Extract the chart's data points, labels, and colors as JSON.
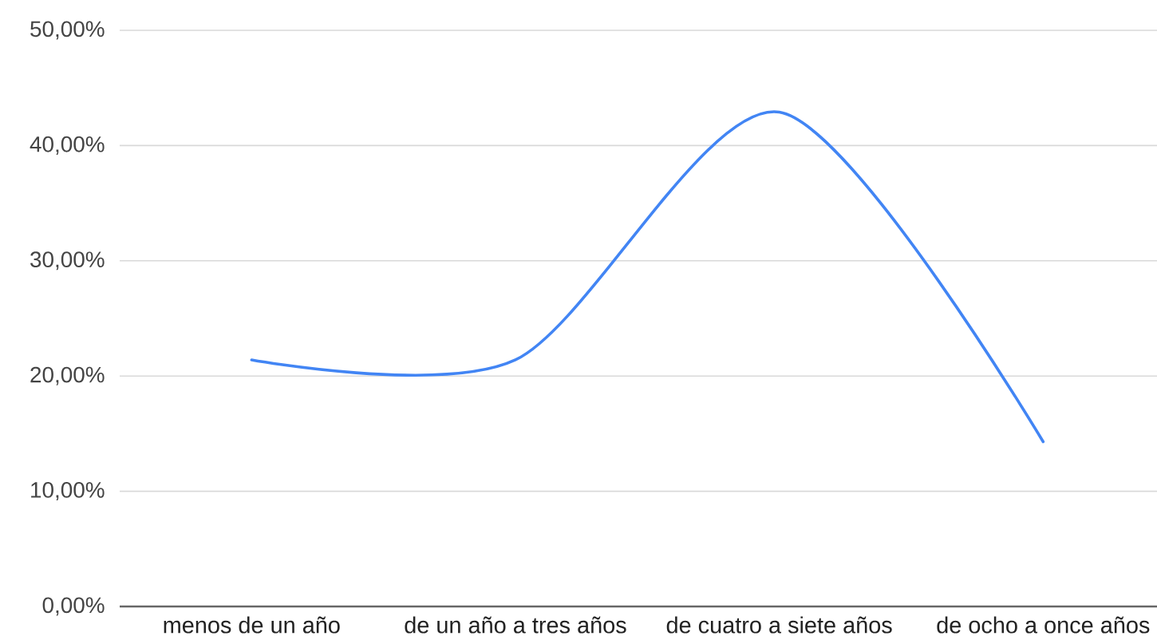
{
  "chart_data": {
    "type": "line",
    "categories": [
      "menos de un año",
      "de un año a tres años",
      "de cuatro a siete  años",
      "de ocho a once años"
    ],
    "series": [
      {
        "color": "#4285f4",
        "values": [
          21.4,
          21.4,
          42.9,
          14.3
        ]
      }
    ],
    "ylim": [
      0,
      50
    ],
    "yticks": [
      {
        "value": 0,
        "label": "0,00%"
      },
      {
        "value": 10,
        "label": "10,00%"
      },
      {
        "value": 20,
        "label": "20,00%"
      },
      {
        "value": 30,
        "label": "30,00%"
      },
      {
        "value": 40,
        "label": "40,00%"
      },
      {
        "value": 50,
        "label": "50,00%"
      }
    ],
    "grid": "y",
    "marker": "none",
    "line_style": "solid"
  }
}
